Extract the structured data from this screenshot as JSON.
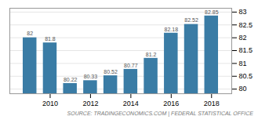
{
  "chart_data": {
    "type": "bar",
    "x": [
      2009,
      2010,
      2011,
      2012,
      2013,
      2014,
      2015,
      2016,
      2017,
      2018
    ],
    "values": [
      82.0,
      81.8,
      80.22,
      80.33,
      80.52,
      80.77,
      81.2,
      82.18,
      82.52,
      82.85
    ],
    "color": "#3a7ca5",
    "xlim": [
      2008.0,
      2019.0
    ],
    "xticks": [
      2010,
      2012,
      2014,
      2016,
      2018
    ],
    "ylim": [
      79.82,
      83.15
    ],
    "yticks": [
      80,
      80.5,
      81,
      81.5,
      82,
      82.5,
      83
    ],
    "grid": true,
    "data_labels": true,
    "annotations": [
      "SOURCE: TRADINGECONOMICS.COM | FEDERAL STATISTICAL OFFICE"
    ]
  }
}
